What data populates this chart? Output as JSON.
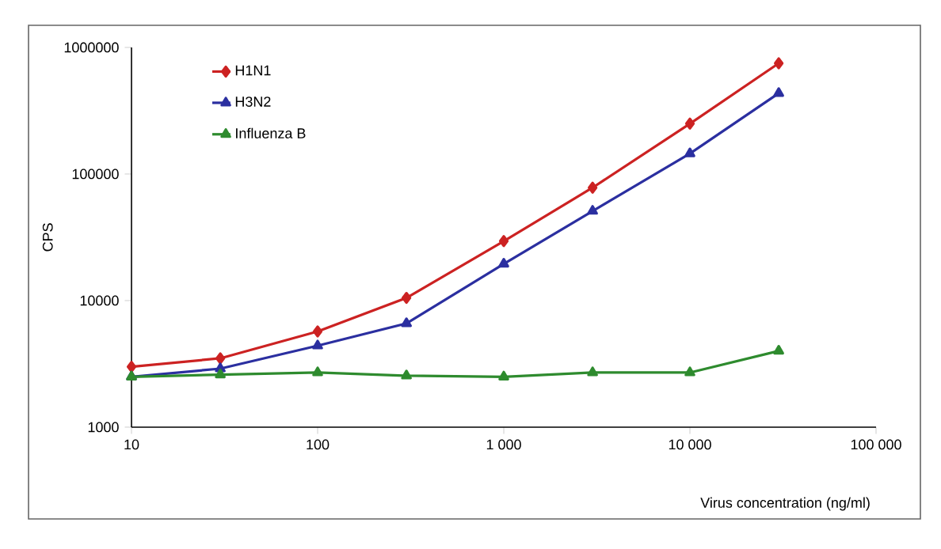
{
  "chart_data": {
    "type": "line",
    "xlabel": "Virus concentration (ng/ml)",
    "ylabel": "CPS",
    "x": [
      10,
      30,
      100,
      300,
      1000,
      3000,
      10000,
      30000
    ],
    "series": [
      {
        "name": "H1N1",
        "color": "#cc2222",
        "marker": "diamond",
        "values": [
          3000,
          3500,
          5700,
          10500,
          29500,
          78000,
          250000,
          750000
        ]
      },
      {
        "name": "H3N2",
        "color": "#2b2fa0",
        "marker": "triangle",
        "values": [
          2500,
          2900,
          4400,
          6600,
          19500,
          51000,
          145000,
          435000
        ]
      },
      {
        "name": "Influenza B",
        "color": "#2e8b2e",
        "marker": "triangle",
        "values": [
          2500,
          2600,
          2700,
          2550,
          2500,
          2700,
          2700,
          4000
        ]
      }
    ],
    "log": "xy",
    "xlim": [
      10,
      100000
    ],
    "ylim": [
      1000,
      1000000
    ],
    "xticks": [
      10,
      100,
      {
        "value": 1000,
        "label": "1 000"
      },
      {
        "value": 10000,
        "label": "10 000"
      },
      {
        "value": 100000,
        "label": "100 000"
      }
    ],
    "yticks": [
      1000,
      10000,
      100000,
      1000000
    ],
    "grid": false,
    "legend": "top left",
    "line_style": "solid"
  }
}
